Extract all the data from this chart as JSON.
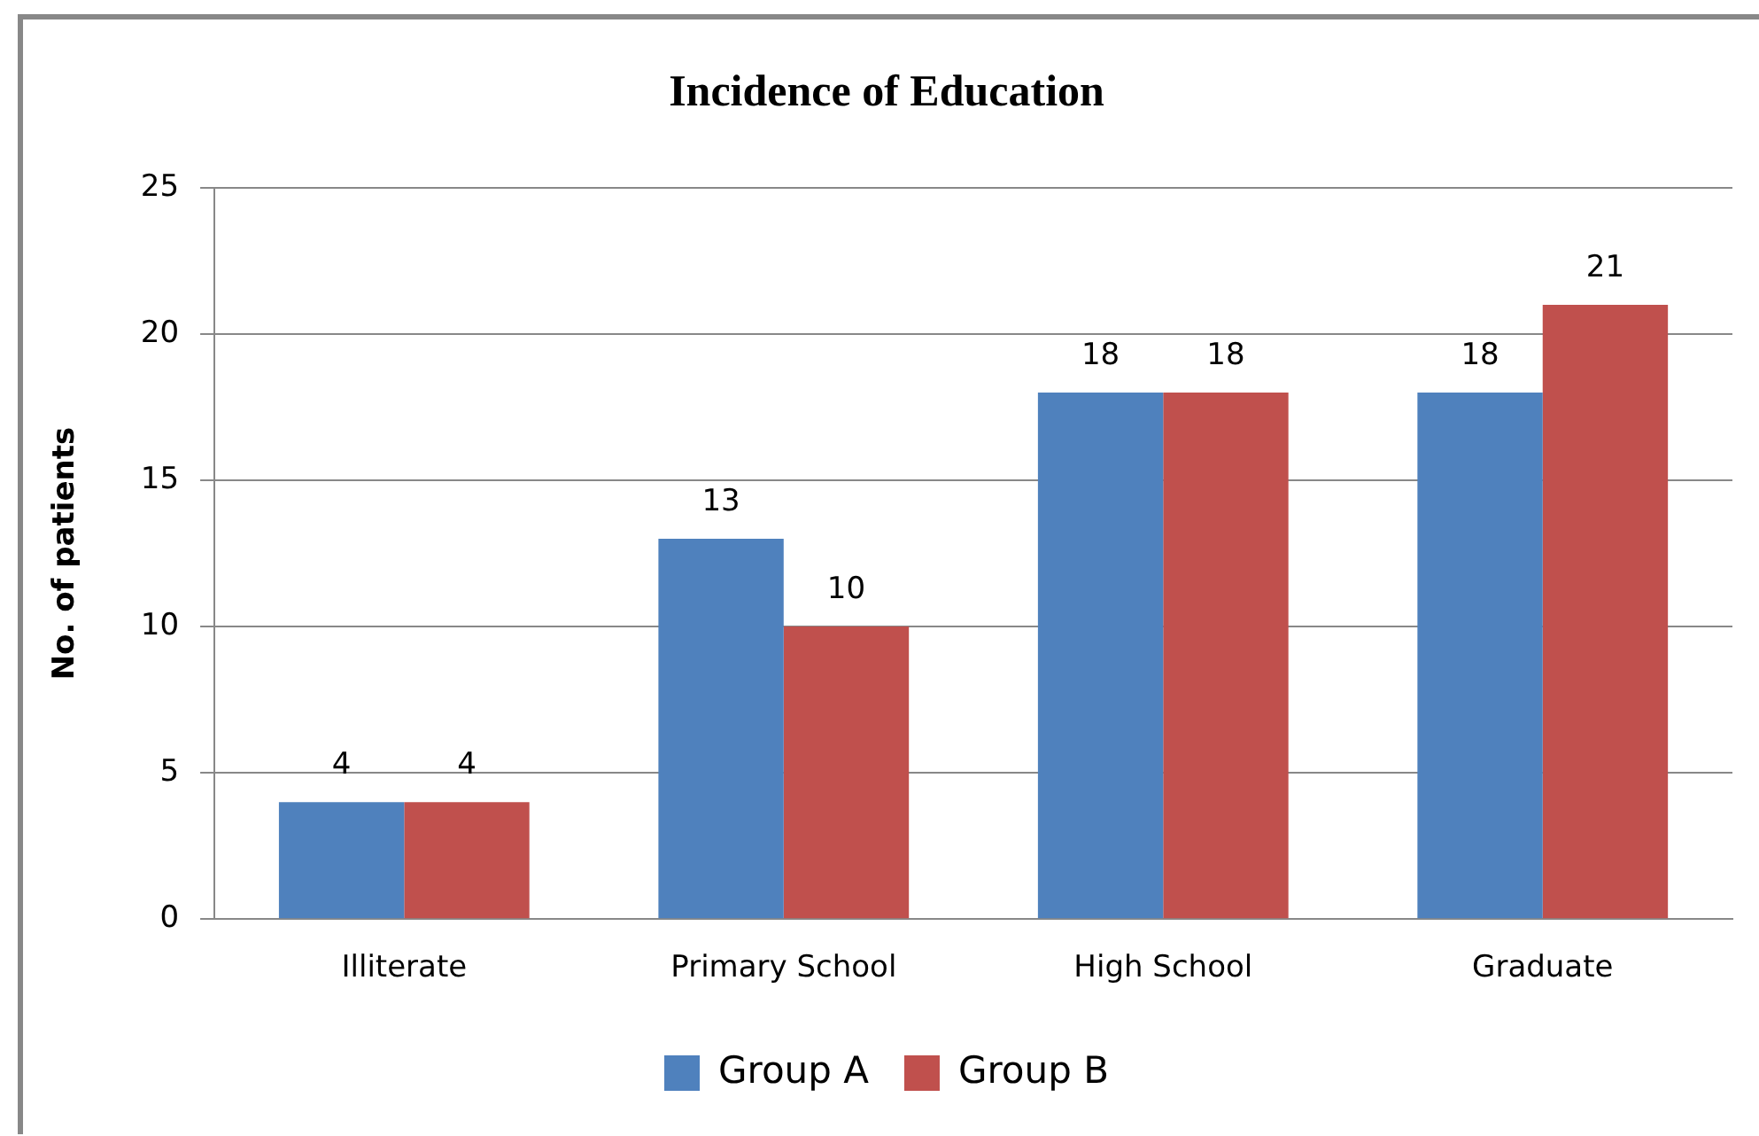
{
  "chart_data": {
    "type": "bar",
    "title": "Incidence of Education",
    "ylabel": "No. of patients",
    "categories": [
      "Illiterate",
      "Primary School",
      "High School",
      "Graduate"
    ],
    "series": [
      {
        "name": "Group A",
        "color": "#4f81bd",
        "values": [
          4,
          13,
          18,
          18
        ]
      },
      {
        "name": "Group B",
        "color": "#c0504d",
        "values": [
          4,
          10,
          18,
          21
        ]
      }
    ],
    "ylim": [
      0,
      25
    ],
    "yticks": [
      0,
      5,
      10,
      15,
      20,
      25
    ],
    "grid": "y",
    "legend": "bottom",
    "data_labels": true
  }
}
